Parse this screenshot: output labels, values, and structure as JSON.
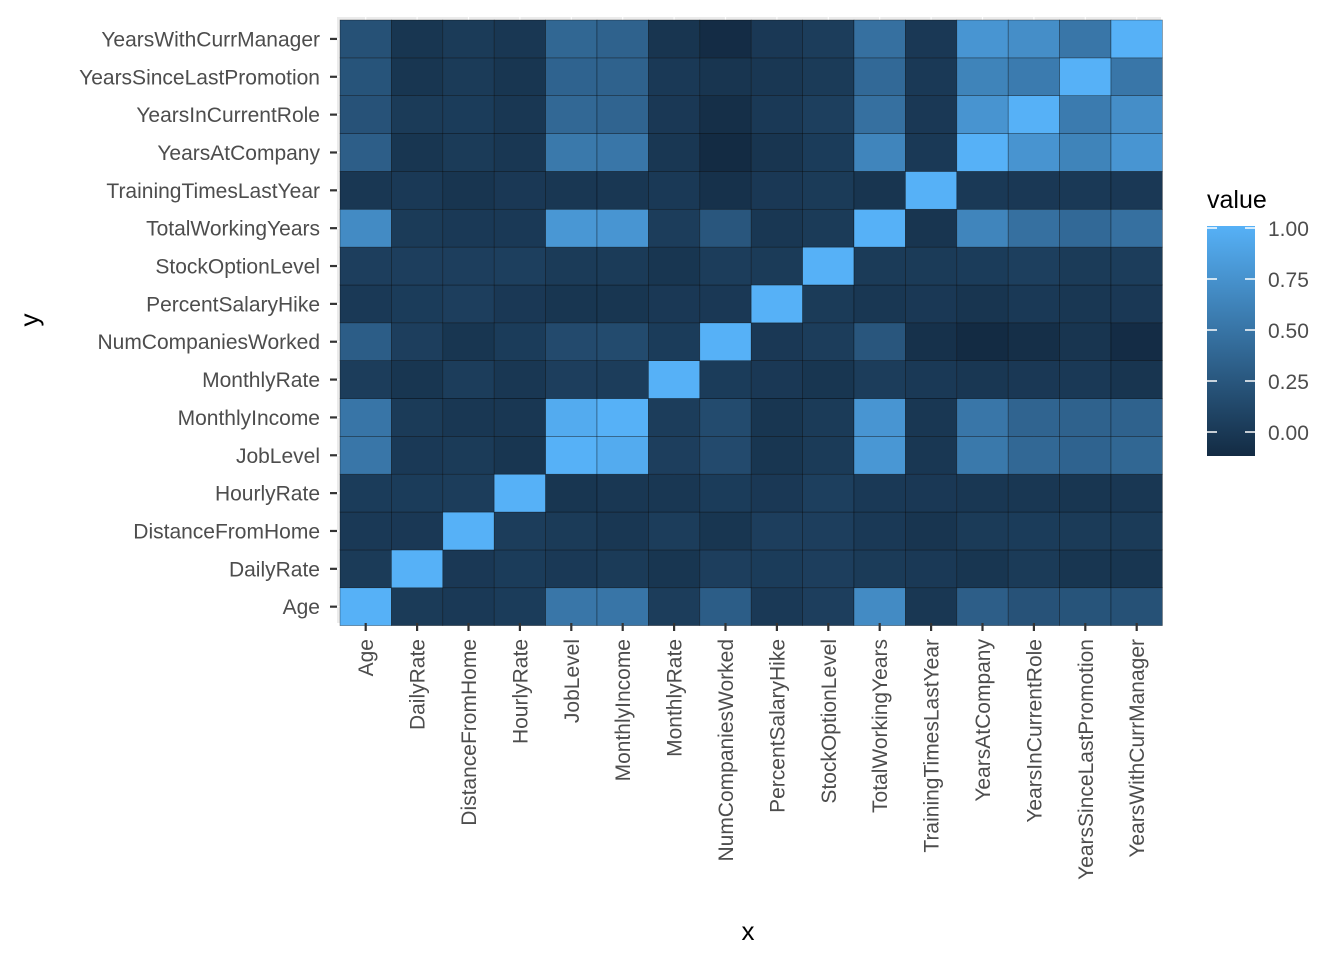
{
  "chart_data": {
    "type": "heatmap",
    "xlabel": "x",
    "ylabel": "y",
    "variables": [
      "Age",
      "DailyRate",
      "DistanceFromHome",
      "HourlyRate",
      "JobLevel",
      "MonthlyIncome",
      "MonthlyRate",
      "NumCompaniesWorked",
      "PercentSalaryHike",
      "StockOptionLevel",
      "TotalWorkingYears",
      "TrainingTimesLastYear",
      "YearsAtCompany",
      "YearsInCurrentRole",
      "YearsSinceLastPromotion",
      "YearsWithCurrManager"
    ],
    "values": [
      [
        1.0,
        0.01,
        0.0,
        0.02,
        0.51,
        0.5,
        0.03,
        0.3,
        0.0,
        0.04,
        0.68,
        -0.02,
        0.31,
        0.21,
        0.22,
        0.2
      ],
      [
        0.01,
        1.0,
        -0.01,
        0.02,
        0.0,
        0.01,
        -0.03,
        0.04,
        0.02,
        0.04,
        0.01,
        0.0,
        -0.03,
        0.01,
        -0.03,
        -0.03
      ],
      [
        0.0,
        -0.01,
        1.0,
        0.03,
        0.01,
        -0.02,
        0.03,
        -0.03,
        0.04,
        0.04,
        0.0,
        -0.04,
        0.01,
        0.02,
        0.01,
        0.01
      ],
      [
        0.02,
        0.02,
        0.03,
        1.0,
        -0.03,
        -0.02,
        -0.02,
        0.02,
        -0.01,
        0.05,
        0.0,
        -0.01,
        -0.02,
        -0.02,
        -0.03,
        -0.02
      ],
      [
        0.51,
        0.0,
        0.01,
        -0.03,
        1.0,
        0.95,
        0.04,
        0.14,
        -0.03,
        0.01,
        0.78,
        -0.02,
        0.53,
        0.39,
        0.35,
        0.38
      ],
      [
        0.5,
        0.01,
        -0.02,
        -0.02,
        0.95,
        1.0,
        0.03,
        0.15,
        -0.03,
        0.01,
        0.77,
        -0.02,
        0.51,
        0.36,
        0.34,
        0.34
      ],
      [
        0.03,
        -0.03,
        0.03,
        -0.02,
        0.04,
        0.03,
        1.0,
        0.02,
        -0.01,
        -0.03,
        0.03,
        0.0,
        -0.02,
        -0.01,
        0.0,
        -0.04
      ],
      [
        0.3,
        0.04,
        -0.03,
        0.02,
        0.14,
        0.15,
        0.02,
        1.0,
        -0.01,
        0.03,
        0.24,
        -0.07,
        -0.12,
        -0.09,
        -0.04,
        -0.11
      ],
      [
        0.0,
        0.02,
        0.04,
        -0.01,
        -0.03,
        -0.03,
        -0.01,
        -0.01,
        1.0,
        0.01,
        -0.02,
        -0.01,
        -0.04,
        0.0,
        -0.02,
        -0.01
      ],
      [
        0.04,
        0.04,
        0.04,
        0.05,
        0.01,
        0.01,
        -0.03,
        0.03,
        0.01,
        1.0,
        0.01,
        0.01,
        0.02,
        0.05,
        0.01,
        0.03
      ],
      [
        0.68,
        0.01,
        0.0,
        0.0,
        0.78,
        0.77,
        0.03,
        0.24,
        -0.02,
        0.01,
        1.0,
        -0.04,
        0.63,
        0.46,
        0.4,
        0.46
      ],
      [
        -0.02,
        0.0,
        -0.04,
        -0.01,
        -0.02,
        -0.02,
        0.0,
        -0.07,
        -0.01,
        0.01,
        -0.04,
        1.0,
        0.0,
        -0.01,
        0.0,
        -0.01
      ],
      [
        0.31,
        -0.03,
        0.01,
        -0.02,
        0.53,
        0.51,
        -0.02,
        -0.12,
        -0.04,
        0.02,
        0.63,
        0.0,
        1.0,
        0.76,
        0.62,
        0.77
      ],
      [
        0.21,
        0.01,
        0.02,
        -0.02,
        0.39,
        0.36,
        -0.01,
        -0.09,
        0.0,
        0.05,
        0.46,
        -0.01,
        0.76,
        1.0,
        0.55,
        0.71
      ],
      [
        0.22,
        -0.03,
        0.01,
        -0.03,
        0.35,
        0.34,
        0.0,
        -0.04,
        -0.02,
        0.01,
        0.4,
        0.0,
        0.62,
        0.55,
        1.0,
        0.51
      ],
      [
        0.2,
        -0.03,
        0.01,
        -0.02,
        0.38,
        0.34,
        -0.04,
        -0.11,
        -0.01,
        0.03,
        0.46,
        -0.01,
        0.77,
        0.71,
        0.51,
        1.0
      ]
    ],
    "legend": {
      "title": "value",
      "position": "right",
      "breaks": [
        1.0,
        0.75,
        0.5,
        0.25,
        0.0
      ],
      "labels": [
        "1.00",
        "0.75",
        "0.50",
        "0.25",
        "0.00"
      ],
      "range": [
        -0.12,
        1.0
      ]
    },
    "colors": {
      "low": "#132B43",
      "high": "#56B1F7",
      "panel_background": "#EBEBEB",
      "grid": "#FFFFFF",
      "tile_border": "#000000"
    }
  }
}
